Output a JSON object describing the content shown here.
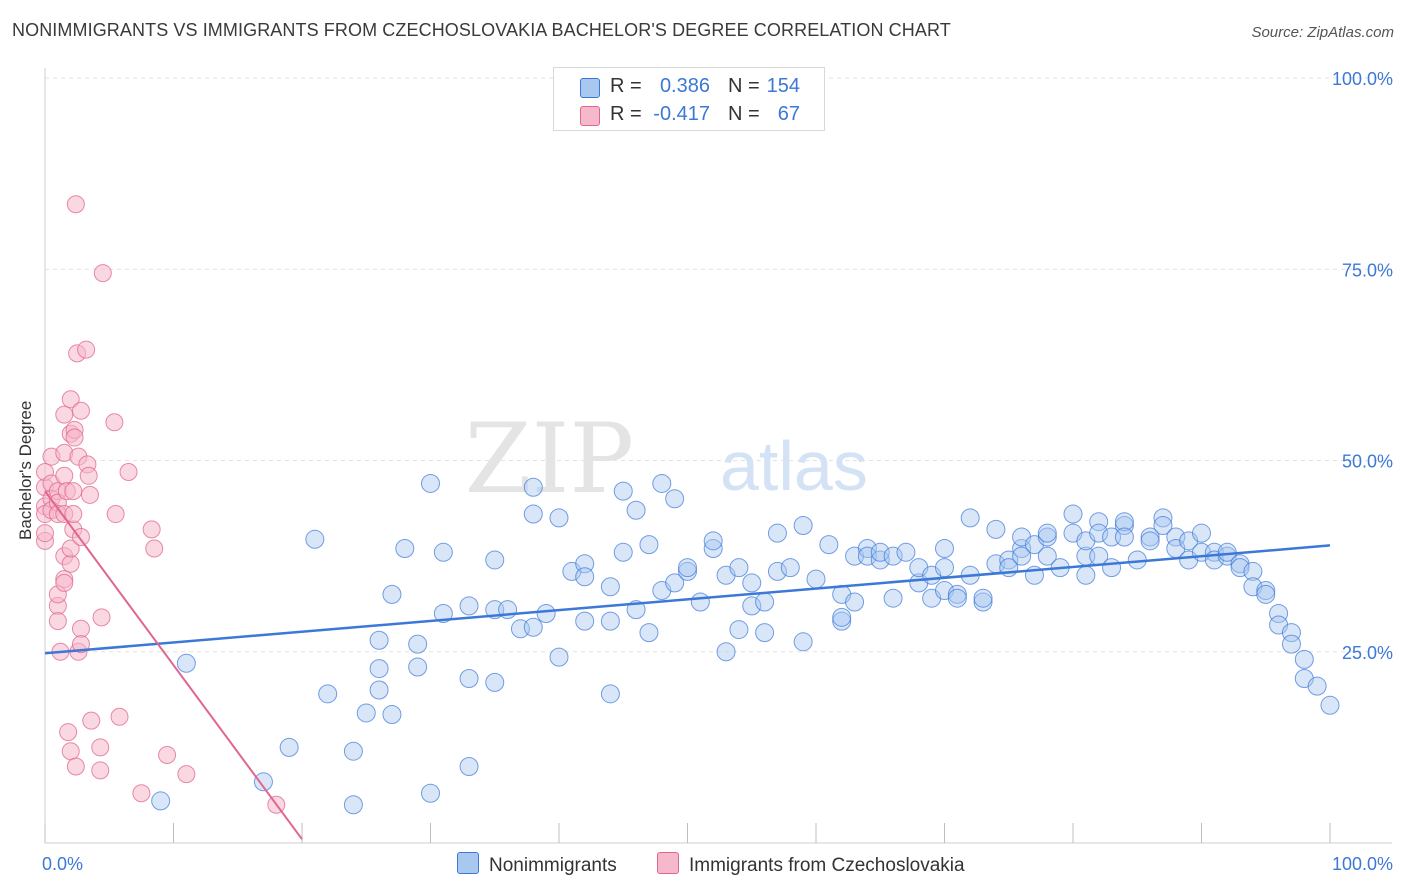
{
  "title": "NONIMMIGRANTS VS IMMIGRANTS FROM CZECHOSLOVAKIA BACHELOR'S DEGREE CORRELATION CHART",
  "source": "Source: ZipAtlas.com",
  "watermark": {
    "zip": "ZIP",
    "atlas": "atlas"
  },
  "legend": {
    "rows": [
      {
        "r_label": "R =",
        "r_value": "0.386",
        "n_label": "N =",
        "n_value": "154",
        "color": "#a9c8f0"
      },
      {
        "r_label": "R =",
        "r_value": "-0.417",
        "n_label": "N =",
        "n_value": "67",
        "color": "#f6b8cb"
      }
    ]
  },
  "bottom_legend": {
    "nonimmigrants": "Nonimmigrants",
    "immigrants": "Immigrants from Czechoslovakia"
  },
  "chart_data": {
    "type": "scatter",
    "ylabel": "Bachelor's Degree",
    "xlabel": "",
    "x_tick_labels": [
      "0.0%",
      "100.0%"
    ],
    "y_tick_labels": [
      "25.0%",
      "50.0%",
      "75.0%",
      "100.0%"
    ],
    "xlim": [
      0,
      100
    ],
    "ylim": [
      0,
      100
    ],
    "grid": true,
    "colors": {
      "blue": "#3c78d8",
      "blue_fill": "#a9c8f0",
      "pink": "#e0668f",
      "pink_fill": "#f6b8cb"
    },
    "series": [
      {
        "name": "Nonimmigrants",
        "trend": [
          [
            0,
            24.8
          ],
          [
            100,
            38.9
          ]
        ],
        "points": [
          [
            9,
            5.5
          ],
          [
            11,
            23.5
          ],
          [
            17,
            8.0
          ],
          [
            19,
            12.5
          ],
          [
            21,
            39.7
          ],
          [
            22,
            19.5
          ],
          [
            24,
            5.0
          ],
          [
            24,
            12.0
          ],
          [
            25,
            17.0
          ],
          [
            26,
            26.5
          ],
          [
            26,
            20.0
          ],
          [
            26,
            22.8
          ],
          [
            27,
            16.8
          ],
          [
            27,
            32.5
          ],
          [
            28,
            38.5
          ],
          [
            29,
            26.0
          ],
          [
            29,
            23.0
          ],
          [
            30,
            47.0
          ],
          [
            30,
            6.5
          ],
          [
            31,
            30.0
          ],
          [
            31,
            38.0
          ],
          [
            33,
            10.0
          ],
          [
            33,
            21.5
          ],
          [
            33,
            31.0
          ],
          [
            35,
            37.0
          ],
          [
            35,
            21.0
          ],
          [
            35,
            30.5
          ],
          [
            36,
            30.5
          ],
          [
            37,
            28.0
          ],
          [
            38,
            43.0
          ],
          [
            38,
            46.5
          ],
          [
            38,
            28.2
          ],
          [
            39,
            30.0
          ],
          [
            40,
            42.5
          ],
          [
            40,
            24.3
          ],
          [
            41,
            35.5
          ],
          [
            42,
            36.5
          ],
          [
            42,
            29.0
          ],
          [
            42,
            34.8
          ],
          [
            44,
            29.0
          ],
          [
            44,
            33.5
          ],
          [
            44,
            19.5
          ],
          [
            45,
            38.0
          ],
          [
            45,
            46.0
          ],
          [
            46,
            30.5
          ],
          [
            46,
            43.5
          ],
          [
            47,
            39.0
          ],
          [
            47,
            27.5
          ],
          [
            48,
            33.0
          ],
          [
            48,
            47.0
          ],
          [
            49,
            34.0
          ],
          [
            49,
            45.0
          ],
          [
            50,
            35.5
          ],
          [
            50,
            36.0
          ],
          [
            51,
            31.5
          ],
          [
            52,
            38.5
          ],
          [
            52,
            39.5
          ],
          [
            53,
            35.0
          ],
          [
            53,
            25.0
          ],
          [
            54,
            36.0
          ],
          [
            54,
            27.9
          ],
          [
            55,
            34.0
          ],
          [
            55,
            31.0
          ],
          [
            56,
            31.5
          ],
          [
            56,
            27.5
          ],
          [
            57,
            35.5
          ],
          [
            57,
            40.5
          ],
          [
            58,
            36.0
          ],
          [
            59,
            26.3
          ],
          [
            59,
            41.5
          ],
          [
            60,
            34.5
          ],
          [
            61,
            39.0
          ],
          [
            62,
            29.0
          ],
          [
            62,
            29.5
          ],
          [
            62,
            32.5
          ],
          [
            63,
            31.5
          ],
          [
            63,
            37.5
          ],
          [
            64,
            38.5
          ],
          [
            64,
            37.5
          ],
          [
            65,
            37.0
          ],
          [
            65,
            38.0
          ],
          [
            66,
            37.5
          ],
          [
            66,
            32.0
          ],
          [
            67,
            38.0
          ],
          [
            68,
            34.0
          ],
          [
            68,
            36.0
          ],
          [
            69,
            35.0
          ],
          [
            69,
            32.0
          ],
          [
            70,
            36.0
          ],
          [
            70,
            38.5
          ],
          [
            70,
            33.0
          ],
          [
            71,
            32.5
          ],
          [
            71,
            32.0
          ],
          [
            72,
            35.0
          ],
          [
            72,
            42.5
          ],
          [
            73,
            31.5
          ],
          [
            73,
            32.0
          ],
          [
            74,
            36.5
          ],
          [
            74,
            41.0
          ],
          [
            75,
            37.0
          ],
          [
            75,
            36.0
          ],
          [
            76,
            38.5
          ],
          [
            76,
            40.0
          ],
          [
            76,
            37.5
          ],
          [
            77,
            35.0
          ],
          [
            77,
            39.0
          ],
          [
            78,
            40.0
          ],
          [
            78,
            37.5
          ],
          [
            78,
            40.5
          ],
          [
            79,
            36.0
          ],
          [
            80,
            40.5
          ],
          [
            80,
            43.0
          ],
          [
            81,
            37.5
          ],
          [
            81,
            35.0
          ],
          [
            81,
            39.5
          ],
          [
            82,
            42.0
          ],
          [
            82,
            37.5
          ],
          [
            82,
            40.5
          ],
          [
            83,
            36.0
          ],
          [
            83,
            40.0
          ],
          [
            84,
            41.5
          ],
          [
            84,
            42.0
          ],
          [
            84,
            40.0
          ],
          [
            85,
            37.0
          ],
          [
            86,
            40.0
          ],
          [
            86,
            39.5
          ],
          [
            87,
            42.5
          ],
          [
            87,
            41.5
          ],
          [
            88,
            40.0
          ],
          [
            88,
            38.5
          ],
          [
            89,
            39.5
          ],
          [
            89,
            37.0
          ],
          [
            90,
            40.5
          ],
          [
            90,
            38.0
          ],
          [
            91,
            38.0
          ],
          [
            91,
            37.0
          ],
          [
            92,
            37.5
          ],
          [
            92,
            38.0
          ],
          [
            93,
            36.5
          ],
          [
            93,
            36.0
          ],
          [
            94,
            35.5
          ],
          [
            94,
            33.5
          ],
          [
            95,
            33.0
          ],
          [
            95,
            32.5
          ],
          [
            96,
            30.0
          ],
          [
            96,
            28.5
          ],
          [
            97,
            27.5
          ],
          [
            97,
            26.0
          ],
          [
            98,
            24.0
          ],
          [
            98,
            21.5
          ],
          [
            99,
            20.5
          ],
          [
            100,
            18.0
          ]
        ]
      },
      {
        "name": "Immigrants from Czechoslovakia",
        "trend": [
          [
            0,
            46.0
          ],
          [
            20,
            0.5
          ]
        ],
        "points": [
          [
            0,
            39.5
          ],
          [
            0,
            44.0
          ],
          [
            0,
            46.5
          ],
          [
            0,
            48.5
          ],
          [
            0,
            40.5
          ],
          [
            0,
            43.0
          ],
          [
            0.5,
            47.0
          ],
          [
            0.5,
            45.0
          ],
          [
            0.5,
            50.5
          ],
          [
            0.5,
            43.5
          ],
          [
            1,
            31.0
          ],
          [
            1,
            32.5
          ],
          [
            1,
            46.0
          ],
          [
            1,
            44.5
          ],
          [
            1,
            43.0
          ],
          [
            1,
            29.0
          ],
          [
            1.2,
            25.0
          ],
          [
            1.5,
            34.5
          ],
          [
            1.5,
            34.0
          ],
          [
            1.5,
            48.0
          ],
          [
            1.5,
            56.0
          ],
          [
            1.5,
            51.0
          ],
          [
            1.5,
            43.0
          ],
          [
            1.5,
            37.5
          ],
          [
            1.7,
            46.0
          ],
          [
            1.8,
            14.5
          ],
          [
            2,
            58.0
          ],
          [
            2,
            53.5
          ],
          [
            2,
            36.5
          ],
          [
            2,
            38.5
          ],
          [
            2,
            12.0
          ],
          [
            2.2,
            41.0
          ],
          [
            2.2,
            43.0
          ],
          [
            2.2,
            46.0
          ],
          [
            2.3,
            54.0
          ],
          [
            2.3,
            53.0
          ],
          [
            2.4,
            10.0
          ],
          [
            2.4,
            83.5
          ],
          [
            2.5,
            64.0
          ],
          [
            2.6,
            50.5
          ],
          [
            2.6,
            25.0
          ],
          [
            2.8,
            40.0
          ],
          [
            2.8,
            56.5
          ],
          [
            2.8,
            28.0
          ],
          [
            2.8,
            26.0
          ],
          [
            3.2,
            64.5
          ],
          [
            3.3,
            49.5
          ],
          [
            3.4,
            48.0
          ],
          [
            3.5,
            45.5
          ],
          [
            3.6,
            16.0
          ],
          [
            4.3,
            12.5
          ],
          [
            4.3,
            9.5
          ],
          [
            4.4,
            29.5
          ],
          [
            4.5,
            74.5
          ],
          [
            5.4,
            55.0
          ],
          [
            5.5,
            43.0
          ],
          [
            5.8,
            16.5
          ],
          [
            6.5,
            48.5
          ],
          [
            7.5,
            6.5
          ],
          [
            8.3,
            41.0
          ],
          [
            8.5,
            38.5
          ],
          [
            9.5,
            11.5
          ],
          [
            11,
            9.0
          ],
          [
            18,
            5.0
          ]
        ]
      }
    ]
  }
}
